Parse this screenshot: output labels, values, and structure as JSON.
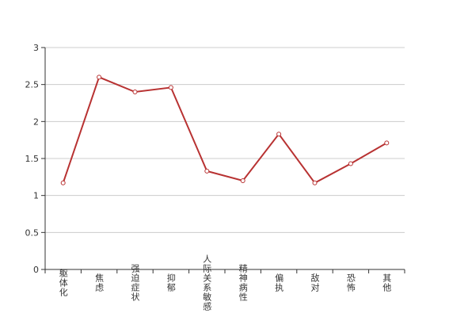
{
  "chart_data": {
    "type": "line",
    "categories": [
      "躯体化",
      "焦虑",
      "强迫症状",
      "抑郁",
      "人际关系敏感",
      "精神病性",
      "偏执",
      "敌对",
      "恐怖",
      "其他"
    ],
    "values": [
      1.17,
      2.6,
      2.4,
      2.46,
      1.33,
      1.2,
      1.83,
      1.17,
      1.43,
      1.71
    ],
    "color": "#b83232",
    "ylim": [
      0,
      3
    ],
    "yticks": [
      0,
      0.5,
      1,
      1.5,
      2,
      2.5,
      3
    ],
    "grid": true
  }
}
